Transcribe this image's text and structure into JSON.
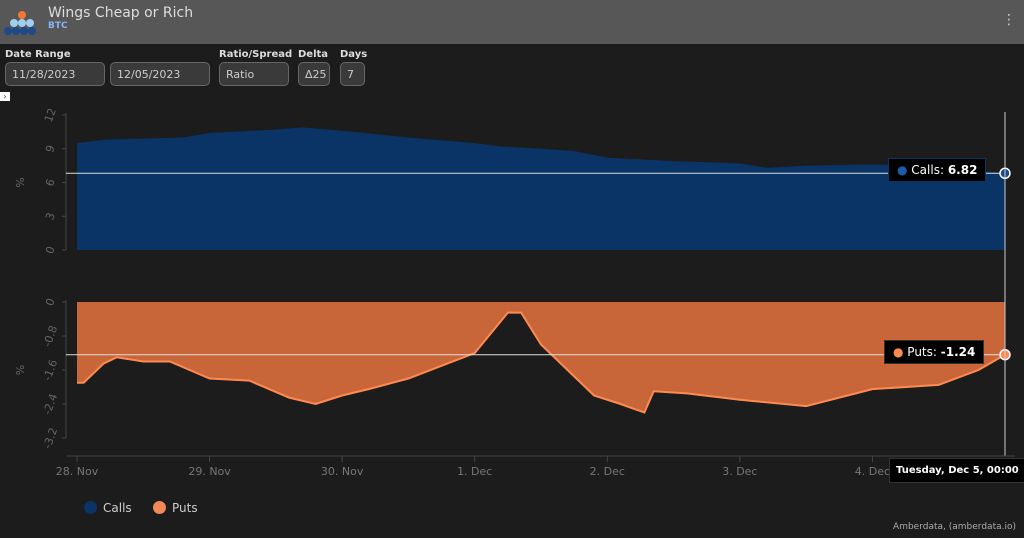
{
  "header": {
    "title": "Wings Cheap or Rich",
    "subtitle": "BTC"
  },
  "controls": {
    "date_range_label": "Date Range",
    "start_date": "11/28/2023",
    "end_date": "12/05/2023",
    "ratio_label": "Ratio/Spread",
    "ratio_value": "Ratio",
    "delta_label": "Delta",
    "delta_value": "Δ25",
    "days_label": "Days",
    "days_value": "7"
  },
  "tooltips": {
    "calls": "Calls: ",
    "calls_value": "6.82",
    "puts": "Puts: ",
    "puts_value": "-1.24",
    "date": "Tuesday, Dec 5, 00:00"
  },
  "legend": {
    "calls": "Calls",
    "puts": "Puts"
  },
  "credit": "Amberdata, (amberdata.io)",
  "chart_data": {
    "type": "area",
    "x_unit": "days since 28 Nov 2023",
    "x_ticks": [
      "28. Nov",
      "29. Nov",
      "30. Nov",
      "1. Dec",
      "2. Dec",
      "3. Dec",
      "4. Dec"
    ],
    "colors": {
      "calls": "#0a3466",
      "puts": "#c8663a",
      "puts_line": "#ff8a50"
    },
    "panels": [
      {
        "name": "Calls",
        "ylabel": "%",
        "ylim": [
          0,
          12
        ],
        "yticks": [
          "0",
          "3",
          "6",
          "9",
          "12"
        ],
        "x": [
          0,
          0.2,
          0.5,
          0.8,
          1.0,
          1.5,
          1.7,
          2.0,
          2.5,
          3.0,
          3.2,
          3.5,
          3.75,
          4.0,
          4.5,
          5.0,
          5.2,
          5.5,
          6.0,
          6.5,
          7.0
        ],
        "y": [
          9.5,
          9.8,
          9.9,
          10.0,
          10.4,
          10.7,
          10.9,
          10.6,
          10.0,
          9.5,
          9.2,
          9.0,
          8.8,
          8.2,
          7.9,
          7.7,
          7.3,
          7.5,
          7.6,
          7.4,
          6.82
        ]
      },
      {
        "name": "Puts",
        "ylabel": "%",
        "ylim": [
          -3.2,
          0
        ],
        "yticks": [
          "0",
          "-0.8",
          "-1.6",
          "-2.4",
          "-3.2"
        ],
        "x": [
          0,
          0.05,
          0.2,
          0.3,
          0.5,
          0.7,
          1.0,
          1.3,
          1.6,
          1.8,
          2.0,
          2.2,
          2.5,
          3.0,
          3.25,
          3.35,
          3.5,
          3.9,
          4.1,
          4.28,
          4.35,
          4.6,
          5.0,
          5.5,
          6.0,
          6.5,
          6.8,
          7.0
        ],
        "y": [
          -1.9,
          -1.9,
          -1.45,
          -1.3,
          -1.4,
          -1.4,
          -1.8,
          -1.85,
          -2.25,
          -2.4,
          -2.2,
          -2.05,
          -1.8,
          -1.2,
          -0.25,
          -0.25,
          -1.0,
          -2.2,
          -2.4,
          -2.6,
          -2.1,
          -2.15,
          -2.3,
          -2.45,
          -2.05,
          -1.95,
          -1.6,
          -1.24
        ]
      }
    ]
  }
}
